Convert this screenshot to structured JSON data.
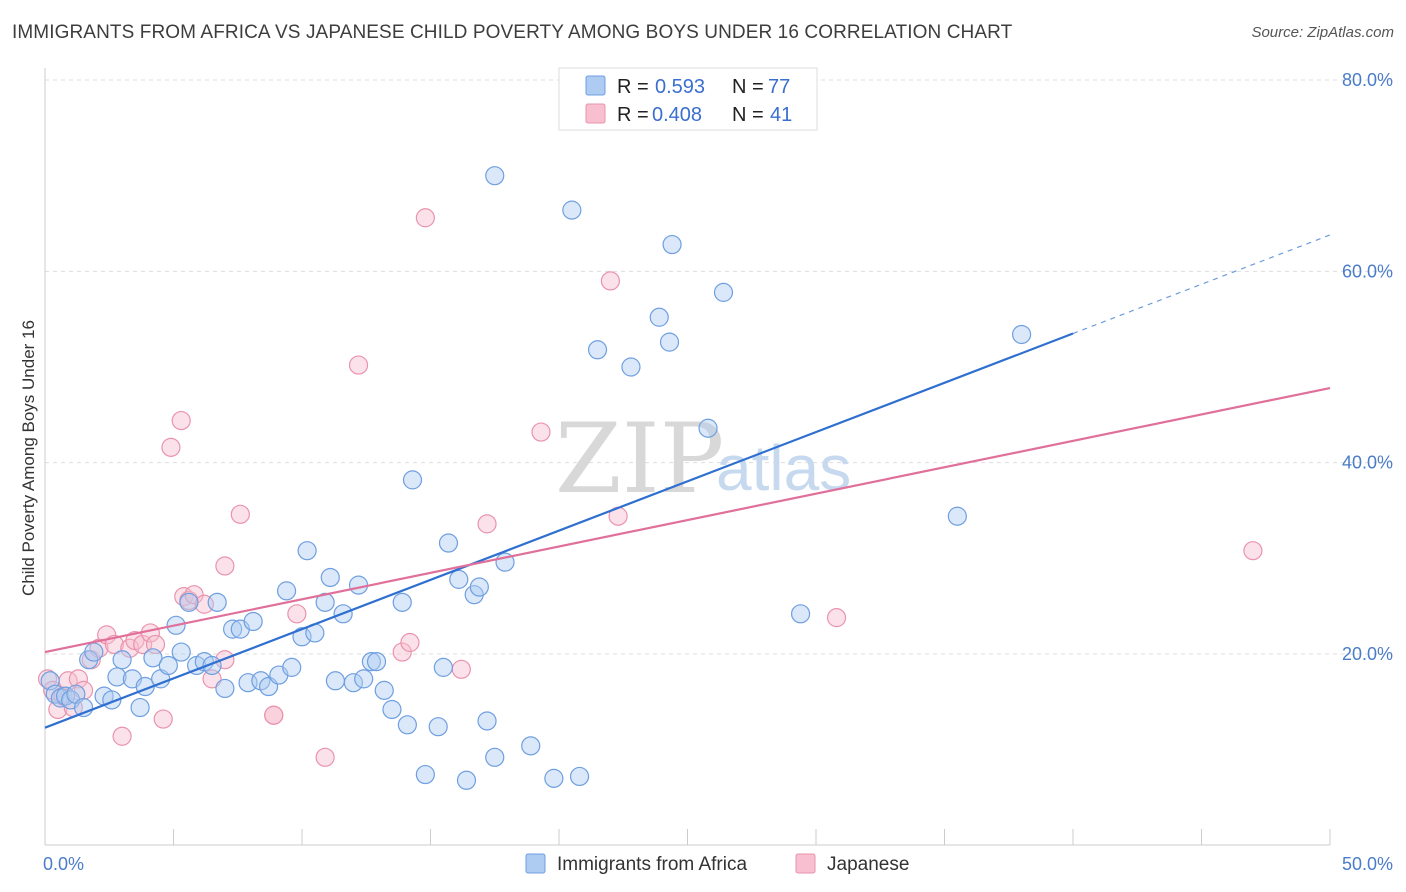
{
  "header": {
    "title": "IMMIGRANTS FROM AFRICA VS JAPANESE CHILD POVERTY AMONG BOYS UNDER 16 CORRELATION CHART",
    "source": "Source: ZipAtlas.com"
  },
  "watermark": {
    "zip": "ZIP",
    "atlas": "atlas"
  },
  "colors": {
    "blue_fill": "#aecbf2",
    "blue_stroke": "#6f9fe0",
    "blue_line": "#2f6fd0",
    "pink_fill": "#f7bfd0",
    "pink_stroke": "#ea93ad",
    "pink_line": "#e0709a",
    "grid": "#dddddd",
    "tick_label": "#4a7cc9"
  },
  "legend": {
    "rows": [
      {
        "r_label": "R =",
        "r_value": "0.593",
        "n_label": "N =",
        "n_value": "77"
      },
      {
        "r_label": "R =",
        "r_value": "0.408",
        "n_label": "N =",
        "n_value": "41"
      }
    ]
  },
  "chart_data": {
    "type": "scatter",
    "title": "IMMIGRANTS FROM AFRICA VS JAPANESE CHILD POVERTY AMONG BOYS UNDER 16 CORRELATION CHART",
    "xlabel": "",
    "ylabel": "Child Poverty Among Boys Under 16",
    "xlim": [
      0,
      50
    ],
    "ylim": [
      0,
      80
    ],
    "x_tick_labels": [
      "0.0%",
      "50.0%"
    ],
    "y_ticks": [
      20,
      40,
      60,
      80
    ],
    "y_tick_labels": [
      "20.0%",
      "40.0%",
      "60.0%",
      "80.0%"
    ],
    "grid": true,
    "legend_position": "top-center",
    "series": [
      {
        "name": "Immigrants from Africa",
        "color": "#6f9fe0",
        "trend": {
          "x": [
            0,
            40
          ],
          "y": [
            12.3,
            53.5
          ],
          "dashed_to": [
            50,
            63.8
          ]
        },
        "points": [
          [
            0.2,
            17.2
          ],
          [
            0.4,
            15.8
          ],
          [
            0.6,
            15.4
          ],
          [
            0.8,
            15.6
          ],
          [
            1.0,
            15.2
          ],
          [
            1.2,
            15.8
          ],
          [
            1.5,
            14.4
          ],
          [
            1.7,
            19.4
          ],
          [
            1.9,
            20.2
          ],
          [
            2.3,
            15.6
          ],
          [
            2.6,
            15.2
          ],
          [
            2.8,
            17.6
          ],
          [
            3.0,
            19.4
          ],
          [
            3.4,
            17.4
          ],
          [
            3.7,
            14.4
          ],
          [
            3.9,
            16.6
          ],
          [
            4.2,
            19.6
          ],
          [
            4.5,
            17.4
          ],
          [
            4.8,
            18.8
          ],
          [
            5.1,
            23.0
          ],
          [
            5.3,
            20.2
          ],
          [
            5.6,
            25.4
          ],
          [
            5.9,
            18.8
          ],
          [
            6.2,
            19.2
          ],
          [
            6.5,
            18.8
          ],
          [
            6.7,
            25.4
          ],
          [
            7.0,
            16.4
          ],
          [
            7.3,
            22.6
          ],
          [
            7.6,
            22.6
          ],
          [
            7.9,
            17.0
          ],
          [
            8.1,
            23.4
          ],
          [
            8.4,
            17.2
          ],
          [
            8.7,
            16.6
          ],
          [
            9.1,
            17.8
          ],
          [
            9.4,
            26.6
          ],
          [
            9.6,
            18.6
          ],
          [
            10.0,
            21.8
          ],
          [
            10.2,
            30.8
          ],
          [
            10.5,
            22.2
          ],
          [
            10.9,
            25.4
          ],
          [
            11.1,
            28.0
          ],
          [
            11.3,
            17.2
          ],
          [
            11.6,
            24.2
          ],
          [
            12.0,
            17.0
          ],
          [
            12.2,
            27.2
          ],
          [
            12.4,
            17.4
          ],
          [
            12.7,
            19.2
          ],
          [
            12.9,
            19.2
          ],
          [
            13.2,
            16.2
          ],
          [
            13.5,
            14.2
          ],
          [
            13.9,
            25.4
          ],
          [
            14.1,
            12.6
          ],
          [
            14.3,
            38.2
          ],
          [
            14.8,
            7.4
          ],
          [
            15.3,
            12.4
          ],
          [
            15.5,
            18.6
          ],
          [
            15.7,
            31.6
          ],
          [
            16.1,
            27.8
          ],
          [
            16.4,
            6.8
          ],
          [
            16.7,
            26.2
          ],
          [
            16.9,
            27.0
          ],
          [
            17.2,
            13.0
          ],
          [
            17.5,
            70.0
          ],
          [
            17.5,
            9.2
          ],
          [
            17.9,
            29.6
          ],
          [
            18.9,
            10.4
          ],
          [
            19.8,
            7.0
          ],
          [
            20.5,
            66.4
          ],
          [
            20.8,
            7.2
          ],
          [
            21.5,
            51.8
          ],
          [
            22.8,
            50.0
          ],
          [
            23.9,
            55.2
          ],
          [
            24.3,
            52.6
          ],
          [
            24.4,
            62.8
          ],
          [
            25.8,
            43.6
          ],
          [
            26.4,
            57.8
          ],
          [
            29.4,
            24.2
          ],
          [
            35.5,
            34.4
          ],
          [
            38.0,
            53.4
          ]
        ]
      },
      {
        "name": "Japanese",
        "color": "#ea93ad",
        "trend": {
          "x": [
            0,
            50
          ],
          "y": [
            20.2,
            47.8
          ]
        },
        "points": [
          [
            0.1,
            17.4
          ],
          [
            0.3,
            16.2
          ],
          [
            0.5,
            14.2
          ],
          [
            0.7,
            15.6
          ],
          [
            0.9,
            17.2
          ],
          [
            1.1,
            14.4
          ],
          [
            1.3,
            17.4
          ],
          [
            1.5,
            16.2
          ],
          [
            1.8,
            19.4
          ],
          [
            2.1,
            20.6
          ],
          [
            2.4,
            22.0
          ],
          [
            2.7,
            21.0
          ],
          [
            3.0,
            11.4
          ],
          [
            3.3,
            20.6
          ],
          [
            3.5,
            21.4
          ],
          [
            3.8,
            21.0
          ],
          [
            4.1,
            22.2
          ],
          [
            4.3,
            21.0
          ],
          [
            4.6,
            13.2
          ],
          [
            4.9,
            41.6
          ],
          [
            5.3,
            44.4
          ],
          [
            5.4,
            26.0
          ],
          [
            5.6,
            25.6
          ],
          [
            5.8,
            26.2
          ],
          [
            6.2,
            25.2
          ],
          [
            6.5,
            17.4
          ],
          [
            7.0,
            19.4
          ],
          [
            7.0,
            29.2
          ],
          [
            7.6,
            34.6
          ],
          [
            8.9,
            13.6
          ],
          [
            8.9,
            13.6
          ],
          [
            9.8,
            24.2
          ],
          [
            10.9,
            9.2
          ],
          [
            12.2,
            50.2
          ],
          [
            13.9,
            20.2
          ],
          [
            14.2,
            21.2
          ],
          [
            14.8,
            65.6
          ],
          [
            16.2,
            18.4
          ],
          [
            17.2,
            33.6
          ],
          [
            19.3,
            43.2
          ],
          [
            22.0,
            59.0
          ],
          [
            22.3,
            34.4
          ],
          [
            30.8,
            23.8
          ],
          [
            47.0,
            30.8
          ]
        ]
      }
    ]
  },
  "bottom_legend": [
    {
      "label": "Immigrants from Africa"
    },
    {
      "label": "Japanese"
    }
  ]
}
